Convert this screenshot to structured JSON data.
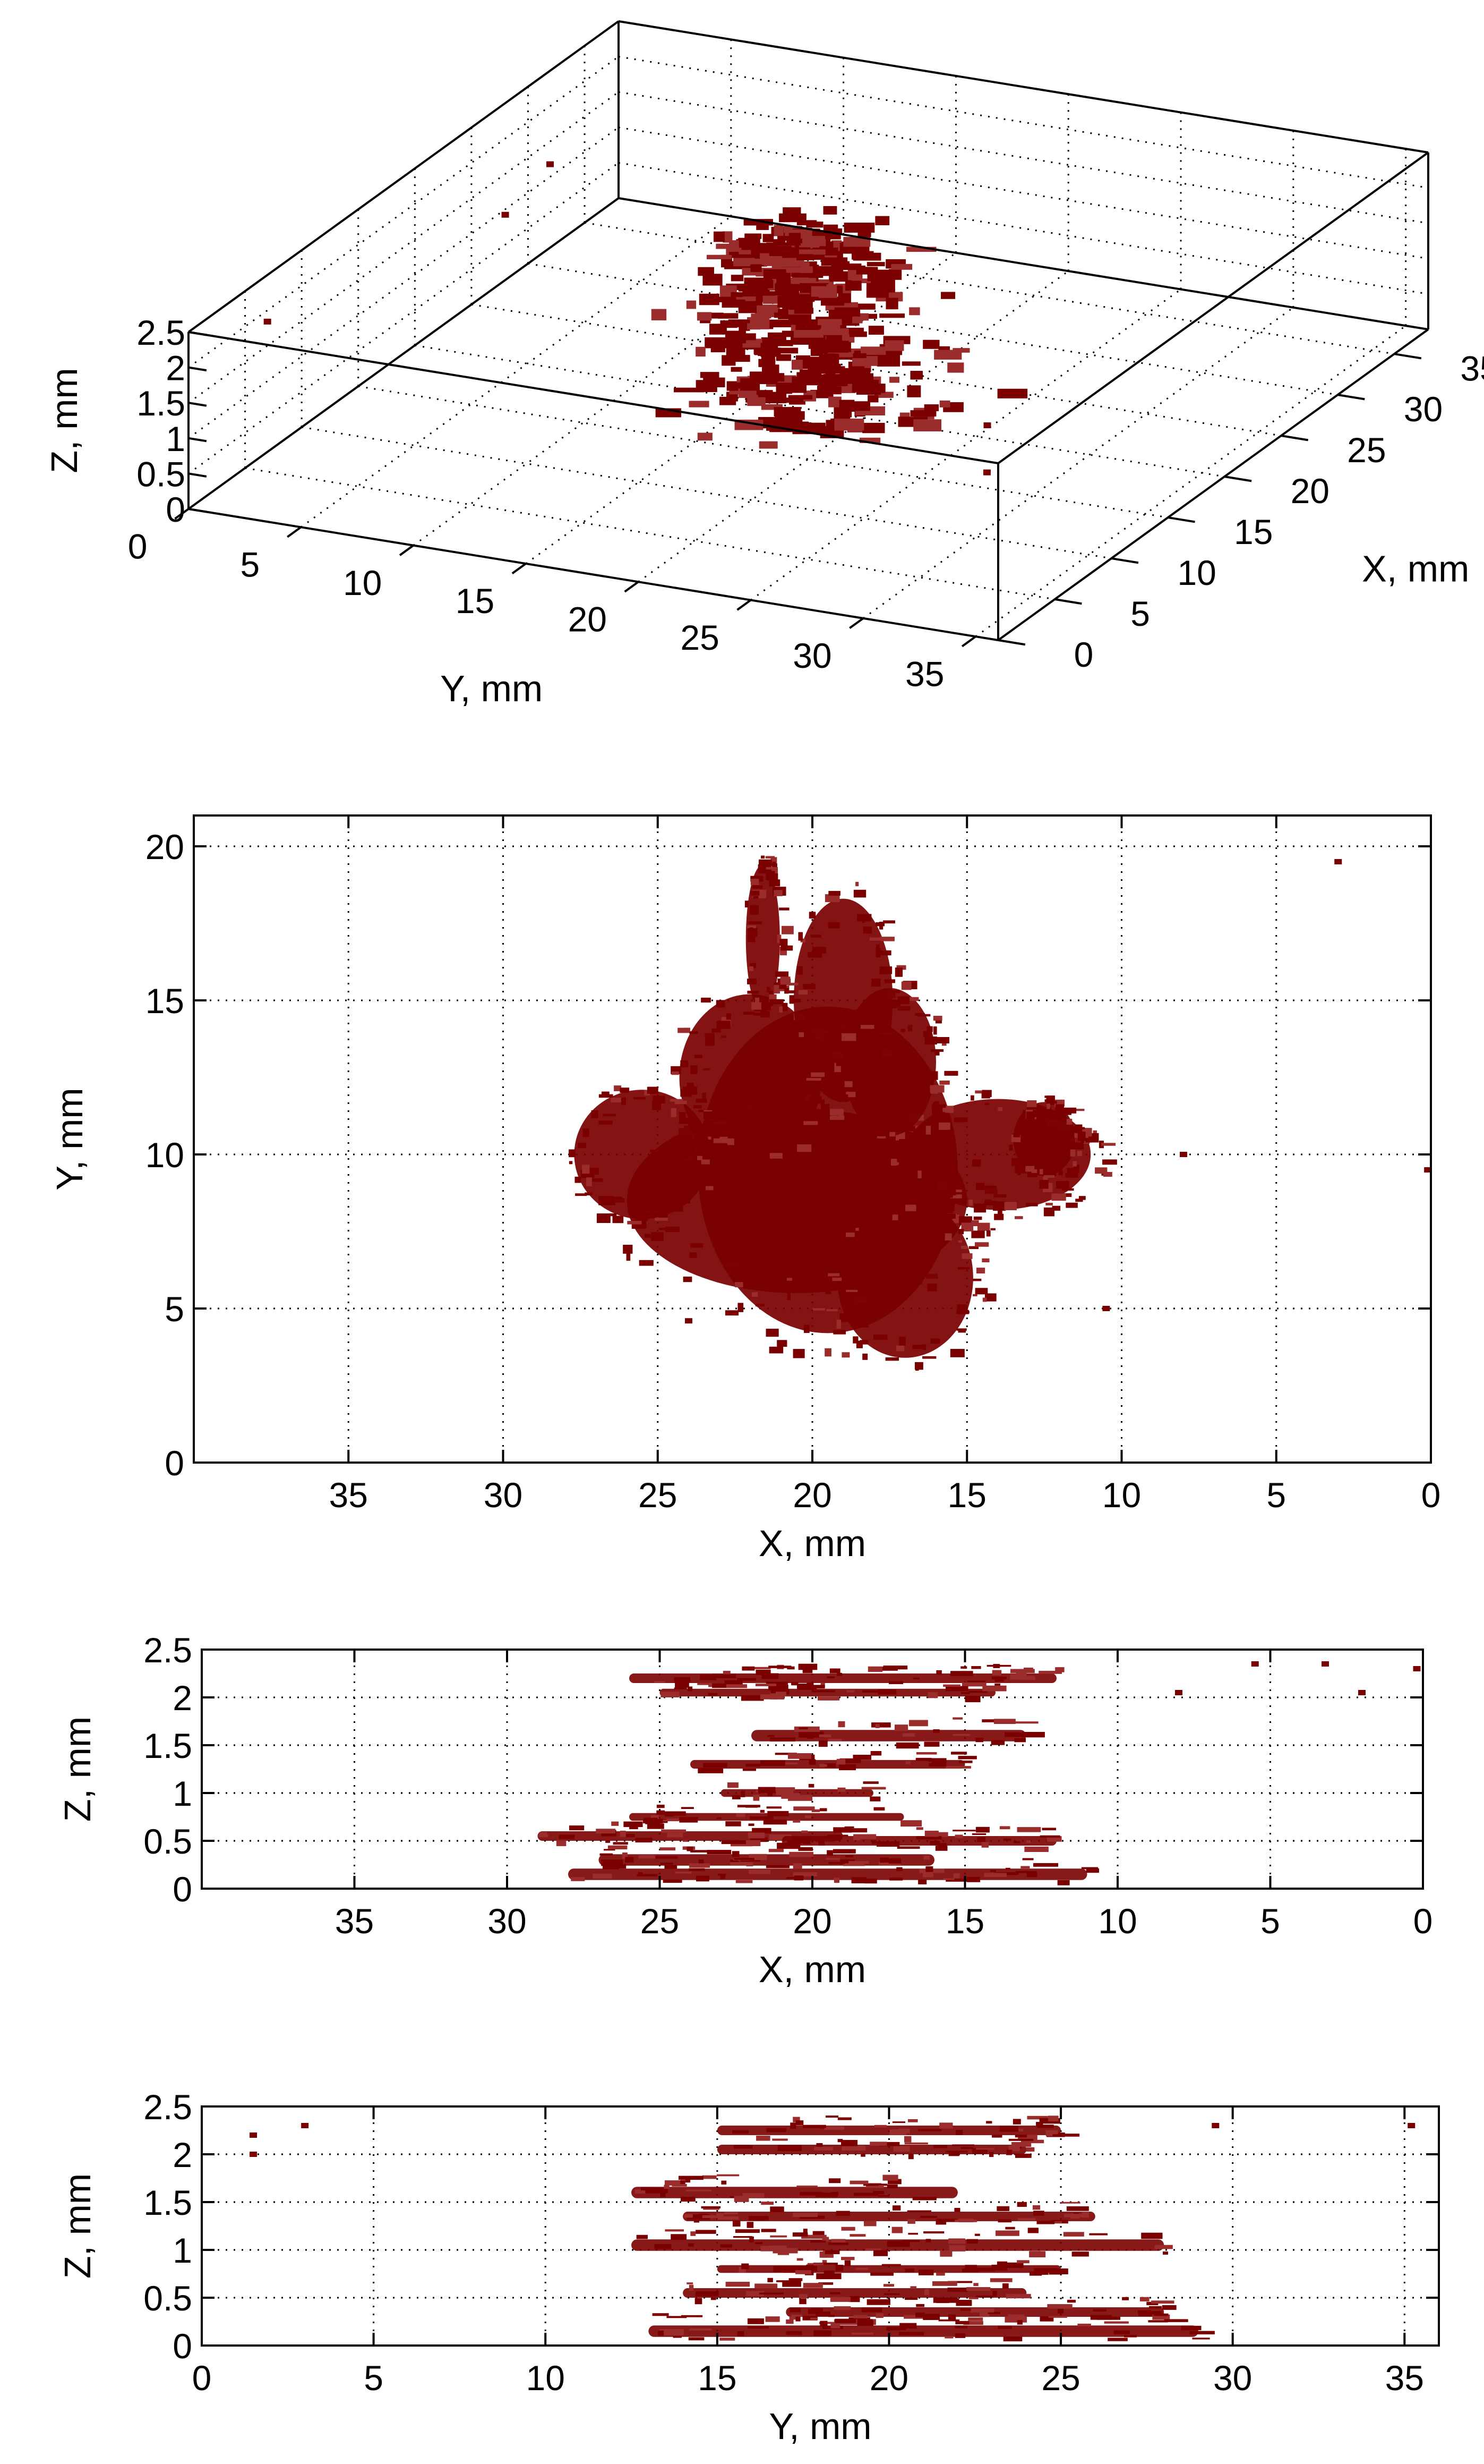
{
  "colors": {
    "data": "#7a0000",
    "data_light": "#9b2c2c",
    "axis": "#000000",
    "grid": "#000000",
    "background": "#ffffff"
  },
  "chart_data": [
    {
      "id": "panel-3d",
      "type": "scatter",
      "projection": "3d",
      "xlabel": "X, mm",
      "ylabel": "Y, mm",
      "zlabel": "Z, mm",
      "xlim": [
        0,
        38
      ],
      "ylim": [
        0,
        36
      ],
      "zlim": [
        0,
        2.5
      ],
      "x_ticks": [
        "0",
        "5",
        "10",
        "15",
        "20",
        "25",
        "30",
        "35"
      ],
      "y_ticks": [
        "0",
        "5",
        "10",
        "15",
        "20",
        "25",
        "30",
        "35"
      ],
      "z_ticks": [
        "0",
        "0.5",
        "1",
        "1.5",
        "2",
        "2.5"
      ],
      "grid": true,
      "clusters": [
        {
          "x": 20,
          "y": 18,
          "z": 0.3,
          "sx": 5.5,
          "sy": 5.0,
          "n": 120
        },
        {
          "x": 20,
          "y": 17,
          "z": 1.0,
          "sx": 4.5,
          "sy": 4.0,
          "n": 90
        },
        {
          "x": 20,
          "y": 17,
          "z": 1.6,
          "sx": 4.0,
          "sy": 4.0,
          "n": 80
        },
        {
          "x": 20,
          "y": 17,
          "z": 2.2,
          "sx": 3.5,
          "sy": 3.5,
          "n": 110
        }
      ],
      "outliers": [
        {
          "x": 3,
          "y": 2,
          "z": 2.4
        },
        {
          "x": 5,
          "y": 33,
          "z": 2.3
        },
        {
          "x": 24,
          "y": 4,
          "z": 2.3
        },
        {
          "x": 26,
          "y": 1,
          "z": 1.2
        },
        {
          "x": 1,
          "y": 35,
          "z": 2.2
        }
      ]
    },
    {
      "id": "panel-xy",
      "type": "scatter",
      "xlabel": "X, mm",
      "ylabel": "Y, mm",
      "xlim": [
        40,
        0
      ],
      "ylim": [
        0,
        21
      ],
      "x_ticks": [
        "35",
        "30",
        "25",
        "20",
        "15",
        "10",
        "5",
        "0"
      ],
      "y_ticks": [
        "0",
        "5",
        "10",
        "15",
        "20"
      ],
      "grid": true,
      "blobs": [
        {
          "x": 19.5,
          "y": 9.5,
          "rx": 4.2,
          "ry": 5.3
        },
        {
          "x": 20.5,
          "y": 8.5,
          "rx": 5.5,
          "ry": 3.0
        },
        {
          "x": 17.0,
          "y": 6.0,
          "rx": 2.2,
          "ry": 2.6
        },
        {
          "x": 22.0,
          "y": 12.5,
          "rx": 2.3,
          "ry": 2.7
        },
        {
          "x": 25.5,
          "y": 10.0,
          "rx": 2.2,
          "ry": 2.1
        },
        {
          "x": 14.0,
          "y": 10.0,
          "rx": 3.0,
          "ry": 1.8
        },
        {
          "x": 21.6,
          "y": 17.0,
          "rx": 0.55,
          "ry": 2.4
        },
        {
          "x": 19.0,
          "y": 15.0,
          "rx": 1.6,
          "ry": 3.3
        },
        {
          "x": 17.5,
          "y": 13.0,
          "rx": 1.5,
          "ry": 2.4
        },
        {
          "x": 12.5,
          "y": 10.5,
          "rx": 1.0,
          "ry": 1.2
        }
      ],
      "outliers": [
        {
          "x": 3.0,
          "y": 19.5
        },
        {
          "x": 8.0,
          "y": 10.0
        },
        {
          "x": 0.1,
          "y": 9.5
        },
        {
          "x": 10.5,
          "y": 5.0
        },
        {
          "x": 24.0,
          "y": 4.6
        }
      ]
    },
    {
      "id": "panel-xz",
      "type": "scatter",
      "xlabel": "X, mm",
      "ylabel": "Z, mm",
      "xlim": [
        40,
        0
      ],
      "ylim": [
        0,
        2.5
      ],
      "x_ticks": [
        "35",
        "30",
        "25",
        "20",
        "15",
        "10",
        "5",
        "0"
      ],
      "y_ticks": [
        "0",
        "0.5",
        "1",
        "1.5",
        "2",
        "2.5"
      ],
      "grid": true,
      "streaks": [
        {
          "x1": 26,
          "x2": 12,
          "z": 2.2,
          "t": 0.1
        },
        {
          "x1": 25,
          "x2": 14,
          "z": 2.05,
          "t": 0.08
        },
        {
          "x1": 22,
          "x2": 13,
          "z": 1.6,
          "t": 0.12
        },
        {
          "x1": 24,
          "x2": 15,
          "z": 1.3,
          "t": 0.09
        },
        {
          "x1": 23,
          "x2": 18,
          "z": 1.0,
          "t": 0.08
        },
        {
          "x1": 26,
          "x2": 17,
          "z": 0.75,
          "t": 0.08
        },
        {
          "x1": 29,
          "x2": 19,
          "z": 0.55,
          "t": 0.1
        },
        {
          "x1": 21,
          "x2": 12,
          "z": 0.5,
          "t": 0.1
        },
        {
          "x1": 27,
          "x2": 16,
          "z": 0.3,
          "t": 0.12
        },
        {
          "x1": 28,
          "x2": 11,
          "z": 0.15,
          "t": 0.12
        }
      ],
      "outliers": [
        {
          "x": 0.2,
          "z": 2.3
        },
        {
          "x": 2.0,
          "z": 2.05
        },
        {
          "x": 3.2,
          "z": 2.35
        },
        {
          "x": 5.5,
          "z": 2.35
        },
        {
          "x": 8.0,
          "z": 2.05
        }
      ]
    },
    {
      "id": "panel-yz",
      "type": "scatter",
      "xlabel": "Y, mm",
      "ylabel": "Z, mm",
      "xlim": [
        0,
        36
      ],
      "ylim": [
        0,
        2.5
      ],
      "x_ticks": [
        "0",
        "5",
        "10",
        "15",
        "20",
        "25",
        "30",
        "35"
      ],
      "y_ticks": [
        "0",
        "0.5",
        "1",
        "1.5",
        "2",
        "2.5"
      ],
      "grid": true,
      "streaks": [
        {
          "x1": 15,
          "x2": 25,
          "z": 2.25,
          "t": 0.1
        },
        {
          "x1": 15,
          "x2": 24,
          "z": 2.05,
          "t": 0.1
        },
        {
          "x1": 12.5,
          "x2": 22,
          "z": 1.6,
          "t": 0.12
        },
        {
          "x1": 14,
          "x2": 26,
          "z": 1.35,
          "t": 0.1
        },
        {
          "x1": 12.5,
          "x2": 28,
          "z": 1.05,
          "t": 0.12
        },
        {
          "x1": 15,
          "x2": 25,
          "z": 0.8,
          "t": 0.08
        },
        {
          "x1": 14,
          "x2": 24,
          "z": 0.55,
          "t": 0.1
        },
        {
          "x1": 17,
          "x2": 28,
          "z": 0.35,
          "t": 0.1
        },
        {
          "x1": 13,
          "x2": 29,
          "z": 0.15,
          "t": 0.12
        }
      ],
      "outliers": [
        {
          "x": 1.5,
          "z": 2.2
        },
        {
          "x": 1.5,
          "z": 2.0
        },
        {
          "x": 3.0,
          "z": 2.3
        },
        {
          "x": 29.5,
          "z": 2.3
        },
        {
          "x": 35.2,
          "z": 2.3
        }
      ]
    }
  ]
}
